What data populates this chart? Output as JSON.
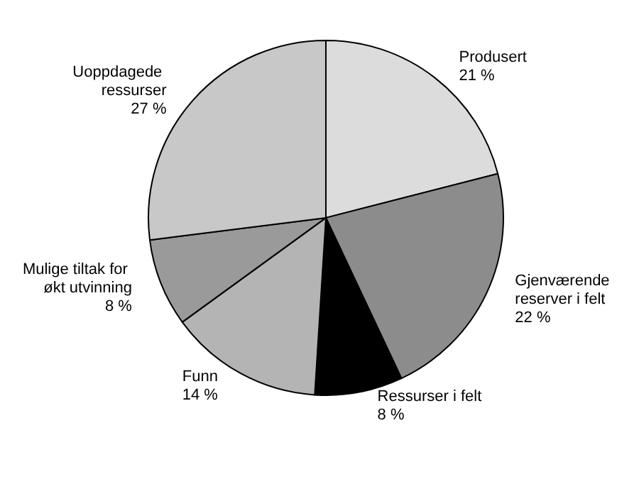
{
  "chart_data": {
    "type": "pie",
    "categories": [
      "Produsert",
      "Gjenværende reserver i felt",
      "Ressurser i felt",
      "Funn",
      "Mulige tiltak for økt utvinning",
      "Uoppdagede ressurser"
    ],
    "values": [
      21,
      22,
      8,
      14,
      8,
      27
    ],
    "value_labels": [
      "21 %",
      "22 %",
      "8 %",
      "14 %",
      "8 %",
      "27 %"
    ],
    "colors": [
      "#dcdcdc",
      "#8c8c8c",
      "#000000",
      "#b4b4b4",
      "#9a9a9a",
      "#c8c8c8"
    ]
  }
}
